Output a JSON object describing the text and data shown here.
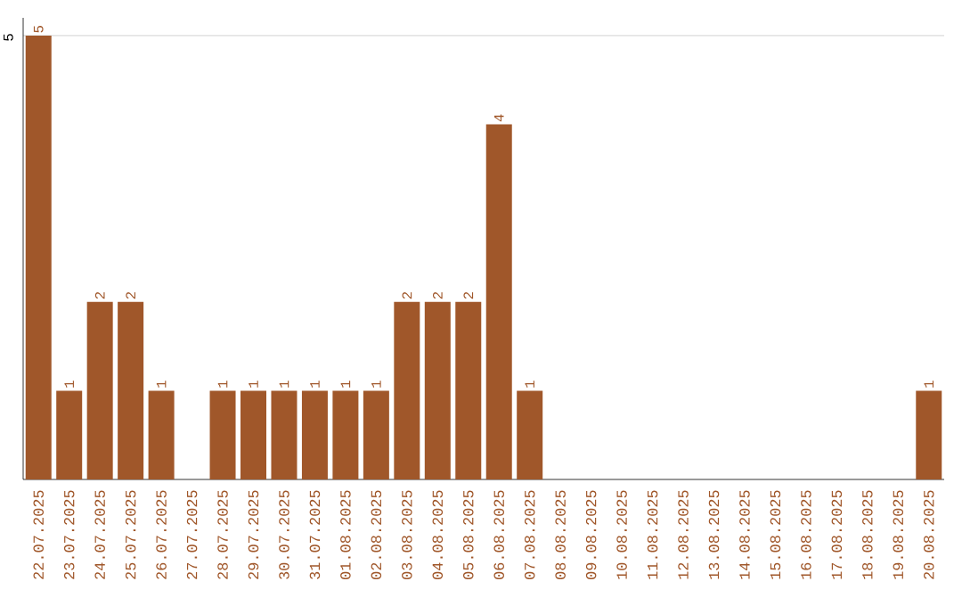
{
  "chart_data": {
    "type": "bar",
    "categories": [
      "22.07.2025",
      "23.07.2025",
      "24.07.2025",
      "25.07.2025",
      "26.07.2025",
      "27.07.2025",
      "28.07.2025",
      "29.07.2025",
      "30.07.2025",
      "31.07.2025",
      "01.08.2025",
      "02.08.2025",
      "03.08.2025",
      "04.08.2025",
      "05.08.2025",
      "06.08.2025",
      "07.08.2025",
      "08.08.2025",
      "09.08.2025",
      "10.08.2025",
      "11.08.2025",
      "12.08.2025",
      "13.08.2025",
      "14.08.2025",
      "15.08.2025",
      "16.08.2025",
      "17.08.2025",
      "18.08.2025",
      "19.08.2025",
      "20.08.2025"
    ],
    "values": [
      5,
      1,
      2,
      2,
      1,
      0,
      1,
      1,
      1,
      1,
      1,
      1,
      2,
      2,
      2,
      4,
      1,
      0,
      0,
      0,
      0,
      0,
      0,
      0,
      0,
      0,
      0,
      0,
      0,
      1
    ],
    "value_labels": [
      "5",
      "1",
      "2",
      "2",
      "1",
      null,
      "1",
      "1",
      "1",
      "1",
      "1",
      "1",
      "2",
      "2",
      "2",
      "4",
      "1",
      null,
      null,
      null,
      null,
      null,
      null,
      null,
      null,
      null,
      null,
      null,
      null,
      "1"
    ],
    "color": "#a0572a",
    "ylim": [
      0,
      5.2
    ],
    "yticks": [
      5
    ],
    "grid": "y"
  }
}
